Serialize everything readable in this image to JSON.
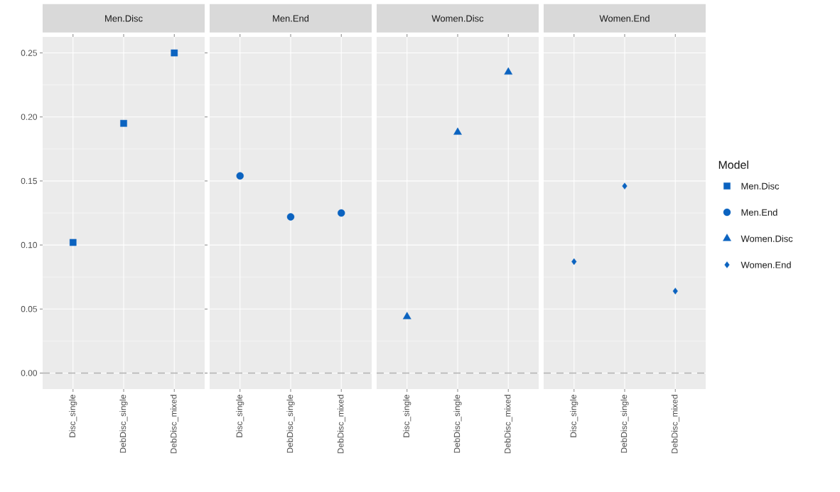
{
  "chart_data": [
    {
      "type": "scatter",
      "title": "Men.Disc",
      "categories": [
        "Disc_single",
        "DebDisc_single",
        "DebDisc_mixed"
      ],
      "series": [
        {
          "name": "Men.Disc",
          "color": "#0b63c0",
          "values": [
            0.102,
            0.195,
            0.25
          ]
        }
      ],
      "marker": "square",
      "ylim": [
        -0.0125,
        0.2625
      ],
      "yticks": [
        {
          "value": 0,
          "label": "0.00"
        },
        {
          "value": 0.05,
          "label": "0.05"
        },
        {
          "value": 0.1,
          "label": "0.10"
        },
        {
          "value": 0.15,
          "label": "0.15"
        },
        {
          "value": 0.2,
          "label": "0.20"
        },
        {
          "value": 0.25,
          "label": "0.25"
        }
      ],
      "grid": true,
      "ref_lines": [
        {
          "axis": "y",
          "value": 0,
          "color": "#b3b3b3",
          "line_style": "dashed"
        }
      ]
    },
    {
      "type": "scatter",
      "title": "Men.End",
      "categories": [
        "Disc_single",
        "DebDisc_single",
        "DebDisc_mixed"
      ],
      "series": [
        {
          "name": "Men.End",
          "color": "#0b63c0",
          "values": [
            0.154,
            0.122,
            0.125
          ]
        }
      ],
      "marker": "circle",
      "ylim": [
        -0.0125,
        0.2625
      ],
      "yticks": [
        0,
        0.05,
        0.1,
        0.15,
        0.2,
        0.25
      ],
      "tick_labels": "x",
      "grid": true,
      "ref_lines": [
        {
          "axis": "y",
          "value": 0,
          "color": "#b3b3b3",
          "line_style": "dashed"
        }
      ]
    },
    {
      "type": "scatter",
      "title": "Women.Disc",
      "categories": [
        "Disc_single",
        "DebDisc_single",
        "DebDisc_mixed"
      ],
      "series": [
        {
          "name": "Women.Disc",
          "color": "#0b63c0",
          "values": [
            0.044,
            0.188,
            0.235
          ]
        }
      ],
      "marker": "triangle",
      "ylim": [
        -0.0125,
        0.2625
      ],
      "yticks": [
        0,
        0.05,
        0.1,
        0.15,
        0.2,
        0.25
      ],
      "tick_labels": "x",
      "grid": true,
      "ref_lines": [
        {
          "axis": "y",
          "value": 0,
          "color": "#b3b3b3",
          "line_style": "dashed"
        }
      ]
    },
    {
      "type": "scatter",
      "title": "Women.End",
      "categories": [
        "Disc_single",
        "DebDisc_single",
        "DebDisc_mixed"
      ],
      "series": [
        {
          "name": "Women.End",
          "color": "#0b63c0",
          "values": [
            0.087,
            0.146,
            0.064
          ]
        }
      ],
      "marker": "diamond",
      "ylim": [
        -0.0125,
        0.2625
      ],
      "yticks": [
        0,
        0.05,
        0.1,
        0.15,
        0.2,
        0.25
      ],
      "tick_labels": "x",
      "grid": true,
      "legend": "right",
      "legend_title": "Model",
      "ref_lines": [
        {
          "axis": "y",
          "value": 0,
          "color": "#b3b3b3",
          "line_style": "dashed"
        }
      ]
    }
  ]
}
